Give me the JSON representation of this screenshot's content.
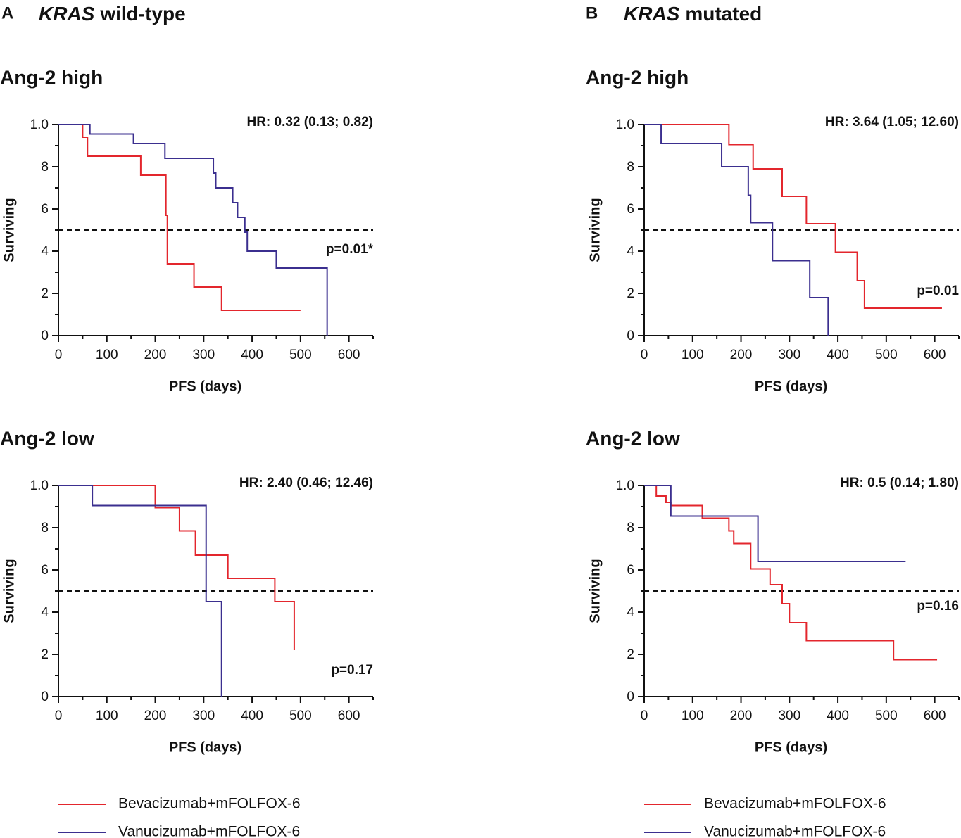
{
  "panels": [
    {
      "letter": "A",
      "gene": "KRAS",
      "status": "wild-type"
    },
    {
      "letter": "B",
      "gene": "KRAS",
      "status": "mutated"
    }
  ],
  "chart_data": [
    {
      "type": "step",
      "title": "Ang-2 high",
      "xlabel": "PFS (days)",
      "ylabel": "Surviving",
      "hr": "HR: 0.32 (0.13; 0.82)",
      "p_value": "p=0.01*",
      "xlim": [
        0,
        650
      ],
      "ylim": [
        0,
        1
      ],
      "xticks": [
        0,
        100,
        200,
        300,
        400,
        500,
        600
      ],
      "xminorticks": [
        50,
        150,
        250,
        350,
        450,
        550
      ],
      "yticks": [
        0,
        {
          "value": 0.2,
          "label": "2"
        },
        {
          "value": 0.4,
          "label": "4"
        },
        {
          "value": 0.6,
          "label": "6"
        },
        {
          "value": 0.8,
          "label": "8"
        },
        {
          "value": 1,
          "label": "1.0"
        }
      ],
      "yminorticks": [
        0.1,
        0.3,
        0.5,
        0.7,
        0.9
      ],
      "reference_line": 0.5,
      "series": [
        {
          "name": "Bevacizumab+mFOLFOX-6",
          "color": "#e3262d",
          "x": [
            0,
            50,
            60,
            170,
            222,
            225,
            280,
            337,
            500
          ],
          "values": [
            1,
            0.94,
            0.85,
            0.76,
            0.57,
            0.34,
            0.23,
            0.12,
            0.12
          ]
        },
        {
          "name": "Vanucizumab+mFOLFOX-6",
          "color": "#3b2f8f",
          "x": [
            0,
            65,
            155,
            220,
            320,
            325,
            360,
            370,
            385,
            390,
            450,
            555
          ],
          "values": [
            1,
            0.955,
            0.91,
            0.84,
            0.77,
            0.7,
            0.63,
            0.56,
            0.49,
            0.4,
            0.32,
            0
          ]
        }
      ]
    },
    {
      "type": "step",
      "title": "Ang-2 high",
      "xlabel": "PFS (days)",
      "ylabel": "Surviving",
      "hr": "HR: 3.64 (1.05; 12.60)",
      "p_value": "p=0.01",
      "xlim": [
        0,
        650
      ],
      "ylim": [
        0,
        1
      ],
      "xticks": [
        0,
        100,
        200,
        300,
        400,
        500,
        600
      ],
      "xminorticks": [
        50,
        150,
        250,
        350,
        450,
        550
      ],
      "yticks": [
        0,
        {
          "value": 0.2,
          "label": "2"
        },
        {
          "value": 0.4,
          "label": "4"
        },
        {
          "value": 0.6,
          "label": "6"
        },
        {
          "value": 0.8,
          "label": "8"
        },
        {
          "value": 1,
          "label": "1.0"
        }
      ],
      "yminorticks": [
        0.1,
        0.3,
        0.5,
        0.7,
        0.9
      ],
      "reference_line": 0.5,
      "series": [
        {
          "name": "Bevacizumab+mFOLFOX-6",
          "color": "#e3262d",
          "x": [
            0,
            175,
            225,
            285,
            335,
            395,
            440,
            455,
            615
          ],
          "values": [
            1,
            0.905,
            0.79,
            0.66,
            0.53,
            0.395,
            0.26,
            0.13,
            0.13
          ]
        },
        {
          "name": "Vanucizumab+mFOLFOX-6",
          "color": "#3b2f8f",
          "x": [
            0,
            35,
            160,
            215,
            220,
            265,
            342,
            380
          ],
          "values": [
            1,
            0.91,
            0.8,
            0.665,
            0.535,
            0.355,
            0.18,
            0
          ]
        }
      ]
    },
    {
      "type": "step",
      "title": "Ang-2 low",
      "xlabel": "PFS (days)",
      "ylabel": "Surviving",
      "hr": "HR: 2.40 (0.46; 12.46)",
      "p_value": "p=0.17",
      "xlim": [
        0,
        650
      ],
      "ylim": [
        0,
        1
      ],
      "xticks": [
        0,
        100,
        200,
        300,
        400,
        500,
        600
      ],
      "xminorticks": [
        50,
        150,
        250,
        350,
        450,
        550
      ],
      "yticks": [
        0,
        {
          "value": 0.2,
          "label": "2"
        },
        {
          "value": 0.4,
          "label": "4"
        },
        {
          "value": 0.6,
          "label": "6"
        },
        {
          "value": 0.8,
          "label": "8"
        },
        {
          "value": 1,
          "label": "1.0"
        }
      ],
      "yminorticks": [
        0.1,
        0.3,
        0.5,
        0.7,
        0.9
      ],
      "reference_line": 0.5,
      "series": [
        {
          "name": "Bevacizumab+mFOLFOX-6",
          "color": "#e3262d",
          "x": [
            0,
            200,
            250,
            283,
            350,
            447,
            487
          ],
          "values": [
            1,
            0.895,
            0.785,
            0.67,
            0.56,
            0.45,
            0.22
          ]
        },
        {
          "name": "Vanucizumab+mFOLFOX-6",
          "color": "#3b2f8f",
          "x": [
            0,
            70,
            305,
            337
          ],
          "values": [
            1,
            0.905,
            0.45,
            0
          ]
        }
      ]
    },
    {
      "type": "step",
      "title": "Ang-2 low",
      "xlabel": "PFS (days)",
      "ylabel": "Surviving",
      "hr": "HR: 0.5 (0.14; 1.80)",
      "p_value": "p=0.16",
      "xlim": [
        0,
        650
      ],
      "ylim": [
        0,
        1
      ],
      "xticks": [
        0,
        100,
        200,
        300,
        400,
        500,
        600
      ],
      "xminorticks": [
        50,
        150,
        250,
        350,
        450,
        550
      ],
      "yticks": [
        0,
        {
          "value": 0.2,
          "label": "2"
        },
        {
          "value": 0.4,
          "label": "4"
        },
        {
          "value": 0.6,
          "label": "6"
        },
        {
          "value": 0.8,
          "label": "8"
        },
        {
          "value": 1,
          "label": "1.0"
        }
      ],
      "yminorticks": [
        0.1,
        0.3,
        0.5,
        0.7,
        0.9
      ],
      "reference_line": 0.5,
      "series": [
        {
          "name": "Bevacizumab+mFOLFOX-6",
          "color": "#e3262d",
          "x": [
            0,
            25,
            45,
            55,
            120,
            175,
            185,
            220,
            260,
            285,
            300,
            335,
            515,
            605
          ],
          "values": [
            1,
            0.95,
            0.92,
            0.905,
            0.845,
            0.785,
            0.725,
            0.605,
            0.53,
            0.44,
            0.35,
            0.265,
            0.175,
            0.175
          ]
        },
        {
          "name": "Vanucizumab+mFOLFOX-6",
          "color": "#3b2f8f",
          "x": [
            0,
            55,
            235,
            540
          ],
          "values": [
            1,
            0.855,
            0.64,
            0.64
          ]
        }
      ]
    }
  ]
}
